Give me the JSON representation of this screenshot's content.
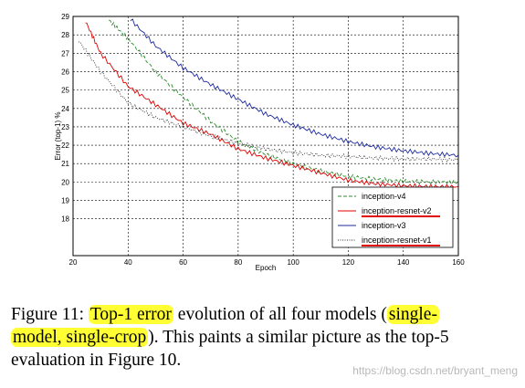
{
  "chart_data": {
    "type": "line",
    "title": "",
    "xlabel": "Epoch",
    "ylabel": "Error (top-1) %",
    "xlim": [
      20,
      160
    ],
    "ylim": [
      16,
      29
    ],
    "xticks": [
      20,
      40,
      60,
      80,
      100,
      120,
      140,
      160
    ],
    "yticks": [
      18,
      19,
      20,
      21,
      22,
      23,
      24,
      25,
      26,
      27,
      28,
      29
    ],
    "grid": true,
    "legend_position": "bottom-right",
    "series": [
      {
        "name": "inception-v4",
        "color": "#2e8b2e",
        "style": "dashed",
        "x": [
          33,
          40,
          50,
          60,
          70,
          80,
          90,
          100,
          110,
          120,
          130,
          140,
          150,
          160
        ],
        "y": [
          28.8,
          27.8,
          26.0,
          24.6,
          23.3,
          22.2,
          21.5,
          21.0,
          20.6,
          20.3,
          20.15,
          20.05,
          20.0,
          20.0
        ]
      },
      {
        "name": "inception-resnet-v2",
        "color": "#e00000",
        "style": "solid",
        "x": [
          24,
          30,
          40,
          50,
          60,
          70,
          80,
          90,
          100,
          110,
          120,
          130,
          140,
          150,
          160
        ],
        "y": [
          28.9,
          27.0,
          25.2,
          24.2,
          23.2,
          22.6,
          21.8,
          21.3,
          20.9,
          20.5,
          20.1,
          19.9,
          19.8,
          19.75,
          19.75
        ]
      },
      {
        "name": "inception-v3",
        "color": "#1c2a9e",
        "style": "solid",
        "x": [
          40,
          50,
          60,
          70,
          80,
          90,
          100,
          110,
          120,
          130,
          140,
          150,
          160
        ],
        "y": [
          29.0,
          27.4,
          26.2,
          25.3,
          24.5,
          23.7,
          23.1,
          22.6,
          22.2,
          21.9,
          21.7,
          21.55,
          21.45
        ]
      },
      {
        "name": "inception-resnet-v1",
        "color": "#333333",
        "style": "dotted",
        "x": [
          22,
          30,
          40,
          50,
          60,
          70,
          80,
          90,
          100,
          110,
          120,
          130,
          140,
          150,
          160
        ],
        "y": [
          27.7,
          26.0,
          24.3,
          23.5,
          23.0,
          22.5,
          22.1,
          21.8,
          21.6,
          21.45,
          21.4,
          21.3,
          21.25,
          21.25,
          21.2
        ]
      }
    ]
  },
  "caption": {
    "prefix": "Figure 11: ",
    "hl1": "Top-1 error",
    "mid1": " evolution of all four models (",
    "hl2a": "single-",
    "hl2b": "model, single-crop",
    "rest": "). This paints a similar picture as the top-5 evaluation in Figure 10."
  },
  "watermark": "https://blog.csdn.net/bryant_meng",
  "colors": {
    "highlight": "#ffff33",
    "underline": "#e00000"
  }
}
